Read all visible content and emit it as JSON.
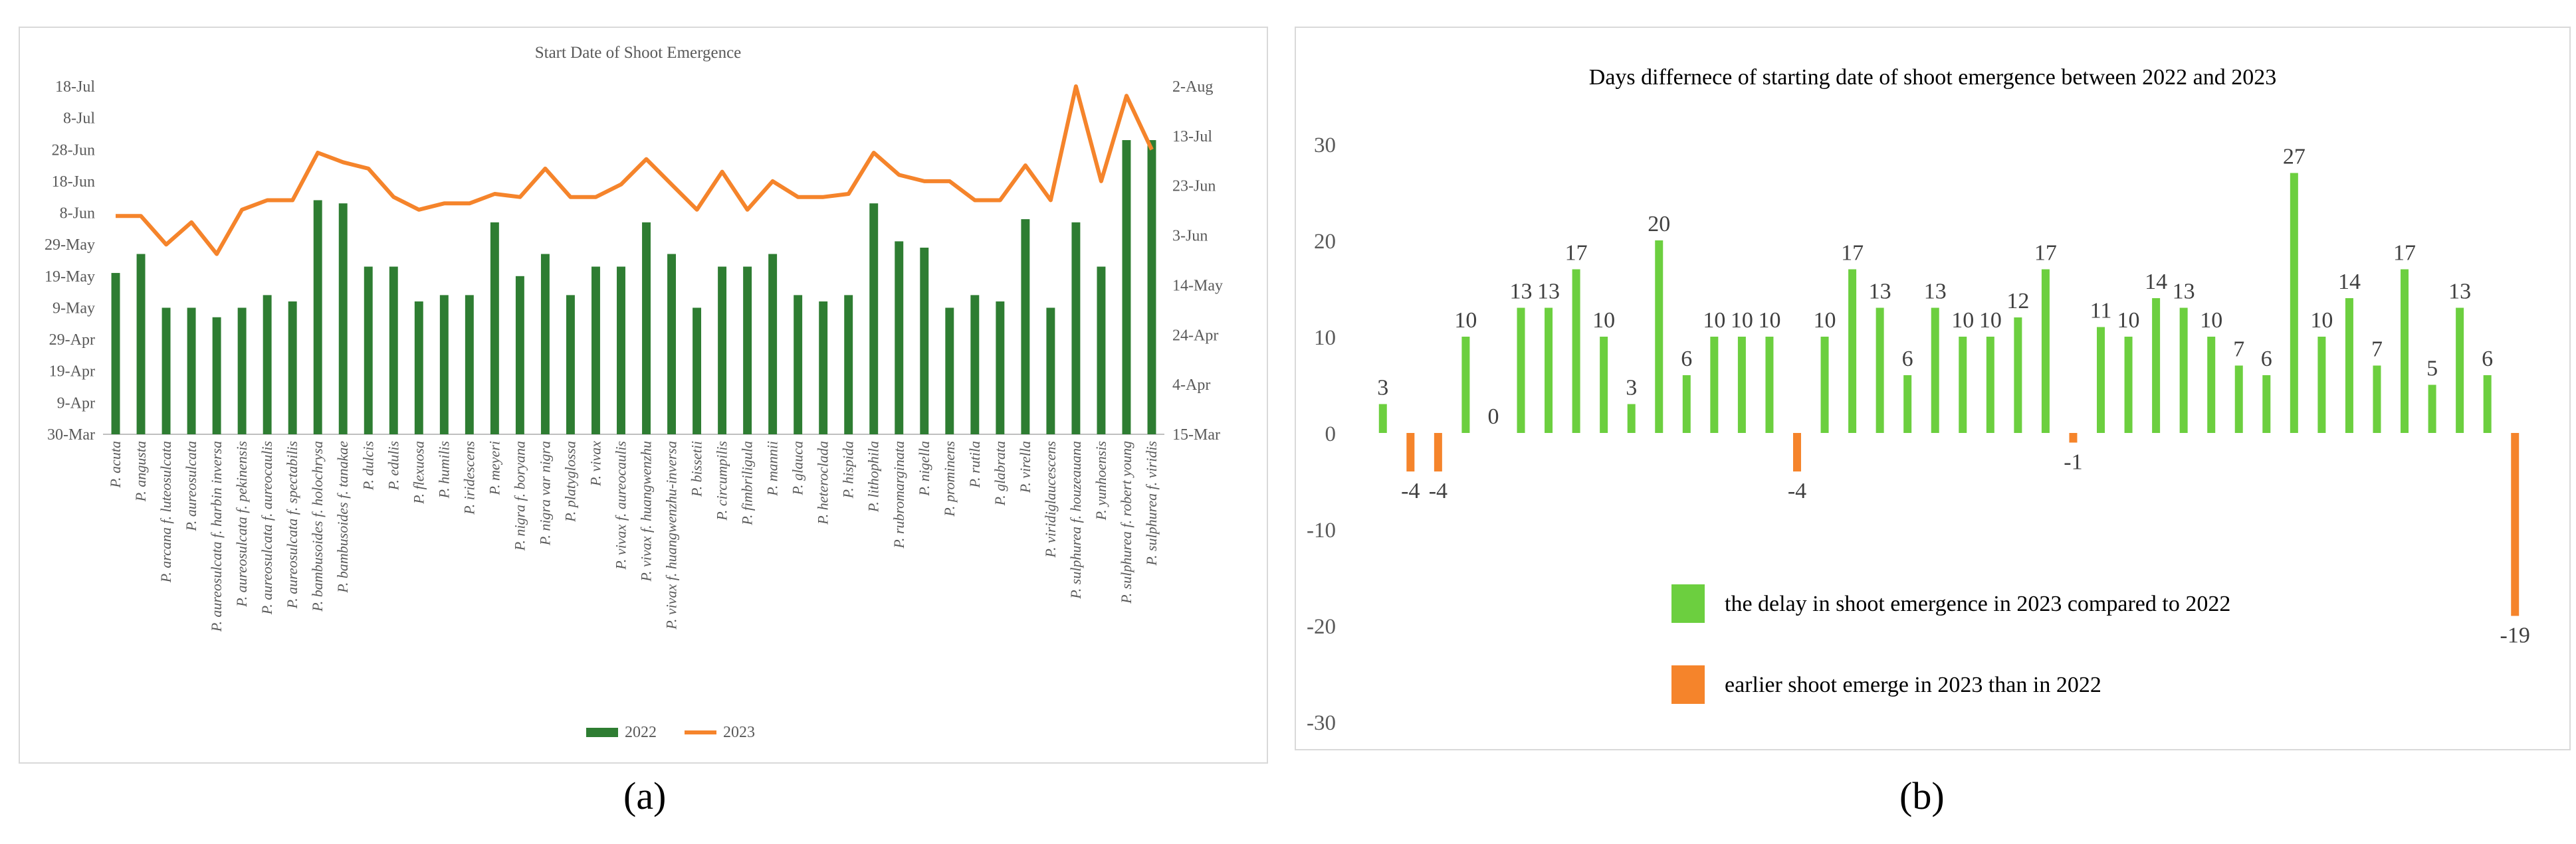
{
  "panel_labels": {
    "a": "(a)",
    "b": "(b)"
  },
  "colors": {
    "bar_2022": "#2e7d32",
    "line_2023": "#f5842b",
    "delay": "#6ccf3f",
    "earlier": "#f5842b",
    "axis_text": "#595959",
    "grid": "#d9d9d9"
  },
  "chart_data": [
    {
      "id": "a",
      "type": "bar",
      "title": "Start Date of Shoot Emergence",
      "categories": [
        "P. acuta",
        "P. angusta",
        "P. arcana f. luteosulcata",
        "P. aureosulcata",
        "P. aureosulcata f. harbin inversa",
        "P. aureosulcata f. pekinensis",
        "P. aureosulcata f. aureocaulis",
        "P. aureosulcata f. spectabilis",
        "P. bambusoides f. holochrysa",
        "P. bambusoides f. tanakae",
        "P. dulcis",
        "P. edulis",
        "P. flexuosa",
        "P. humilis",
        "P. iridescens",
        "P. meyeri",
        "P. nigra f. boryana",
        "P. nigra var nigra",
        "P. platyglossa",
        "P. vivax",
        "P. vivax f. aureocaulis",
        "P. vivax f. huangwenzhu",
        "P. vivax f. huangwenzhu-inversa",
        "P. bissetii",
        "P. circumpilis",
        "P. fimbriligula",
        "P. mannii",
        "P. glauca",
        "P. heteroclada",
        "P. hispida",
        "P. lithophila",
        "P. rubromarginata",
        "P. nigella",
        "P. prominens",
        "P. rutila",
        "P. glabrata",
        "P. virella",
        "P. viridiglaucescens",
        "P. sulphurea f. houzeauana",
        "P. yunhoensis",
        "P. sulphurea f. robert young",
        "P. sulphurea f. viridis"
      ],
      "left_axis": {
        "ticks": [
          "30-Mar",
          "9-Apr",
          "19-Apr",
          "29-Apr",
          "9-May",
          "19-May",
          "29-May",
          "8-Jun",
          "18-Jun",
          "28-Jun",
          "8-Jul",
          "18-Jul"
        ],
        "ylim": [
          0,
          110
        ],
        "step": 10
      },
      "right_axis": {
        "ticks": [
          "15-Mar",
          "4-Apr",
          "24-Apr",
          "14-May",
          "3-Jun",
          "23-Jun",
          "13-Jul",
          "2-Aug"
        ],
        "ylim": [
          0,
          140
        ],
        "step": 20
      },
      "series": [
        {
          "name": "2022",
          "kind": "bar",
          "values": [
            51,
            57,
            40,
            40,
            37,
            40,
            44,
            42,
            74,
            73,
            53,
            53,
            42,
            44,
            44,
            67,
            50,
            57,
            44,
            53,
            53,
            67,
            57,
            40,
            53,
            53,
            57,
            44,
            42,
            44,
            73,
            61,
            59,
            40,
            44,
            42,
            68,
            40,
            67,
            53,
            93,
            93
          ]
        },
        {
          "name": "2023",
          "kind": "line",
          "values": [
            69,
            69,
            60,
            67,
            57,
            71,
            74,
            74,
            89,
            86,
            84,
            75,
            71,
            73,
            73,
            76,
            75,
            84,
            75,
            75,
            79,
            87,
            79,
            71,
            83,
            71,
            80,
            75,
            75,
            76,
            89,
            82,
            80,
            80,
            74,
            74,
            85,
            74,
            110,
            80,
            107,
            90
          ]
        }
      ],
      "legend": {
        "position": "bottom",
        "entries": [
          "2022",
          "2023"
        ]
      }
    },
    {
      "id": "b",
      "type": "bar",
      "title": "Days differnece of starting date of shoot emergence between 2022 and 2023",
      "values": [
        3,
        -4,
        -4,
        10,
        0,
        13,
        13,
        17,
        10,
        3,
        20,
        6,
        10,
        10,
        10,
        -4,
        10,
        17,
        13,
        6,
        13,
        10,
        10,
        12,
        17,
        -1,
        11,
        10,
        14,
        13,
        10,
        7,
        6,
        27,
        10,
        14,
        7,
        17,
        5,
        13,
        6,
        -19
      ],
      "data_labels": [
        "3",
        "-4",
        "-4",
        "10",
        "0",
        "13",
        "13",
        "17",
        "10",
        "3",
        "20",
        "6",
        "10",
        "10",
        "10",
        "-4",
        "10",
        "17",
        "13",
        "6",
        "13",
        "10",
        "10",
        "12",
        "17",
        "-1",
        "11",
        "10",
        "14",
        "13",
        "10",
        "7",
        "6",
        "27",
        "10",
        "14",
        "7",
        "17",
        "5",
        "13",
        "6",
        "-19"
      ],
      "yticks": [
        "-30",
        "-20",
        "-10",
        "0",
        "10",
        "20",
        "30"
      ],
      "ylim": [
        -30,
        30
      ],
      "legend": {
        "position": "center-right",
        "entries": [
          "the delay in shoot emergence in 2023 compared to 2022",
          "earlier shoot emerge in 2023 than in 2022"
        ]
      }
    }
  ]
}
